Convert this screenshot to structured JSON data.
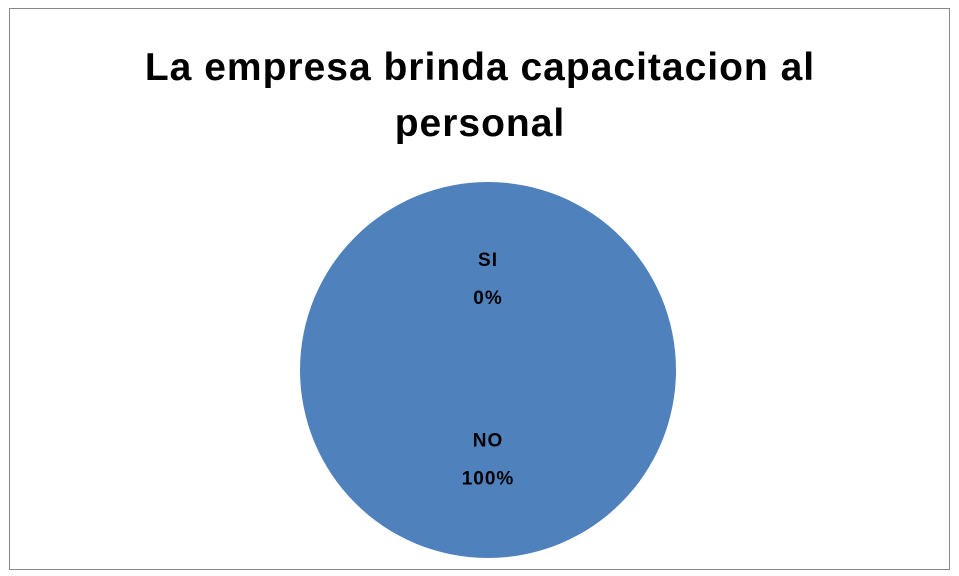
{
  "chart_data": {
    "type": "pie",
    "title": "La empresa brinda capacitacion al personal",
    "categories": [
      "SI",
      "NO"
    ],
    "values": [
      0,
      100
    ],
    "value_labels": [
      "0%",
      "100%"
    ],
    "colors": [
      "#c0504d",
      "#4f81bd"
    ]
  }
}
